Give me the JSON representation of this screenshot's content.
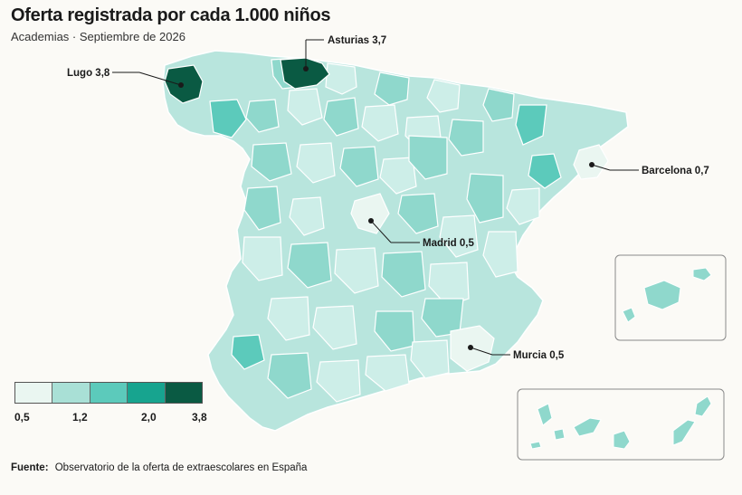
{
  "title": "Oferta registrada por cada 1.000 niños",
  "subtitle": "Academias · Septiembre de 2026",
  "source": {
    "label": "Fuente:",
    "text": "Observatorio de la oferta de extraescolares en España"
  },
  "legend": {
    "colors": [
      "#eaf6f1",
      "#a9e0d6",
      "#5ccabb",
      "#17a48f",
      "#0a5a43"
    ],
    "labels": [
      "0,5",
      "1,2",
      "2,0",
      "3,8"
    ]
  },
  "callouts": {
    "lugo": "Lugo 3,8",
    "asturias": "Asturias 3,7",
    "barcelona": "Barcelona 0,7",
    "madrid": "Madrid 0,5",
    "murcia": "Murcia 0,5"
  },
  "map_colors": {
    "base": "#b8e5dd",
    "light": "#cdeee8",
    "mid": "#8fd8cc",
    "strong": "#5ccabb",
    "darkest": "#0a5a43",
    "palest": "#eaf6f1",
    "border": "#ffffff"
  }
}
